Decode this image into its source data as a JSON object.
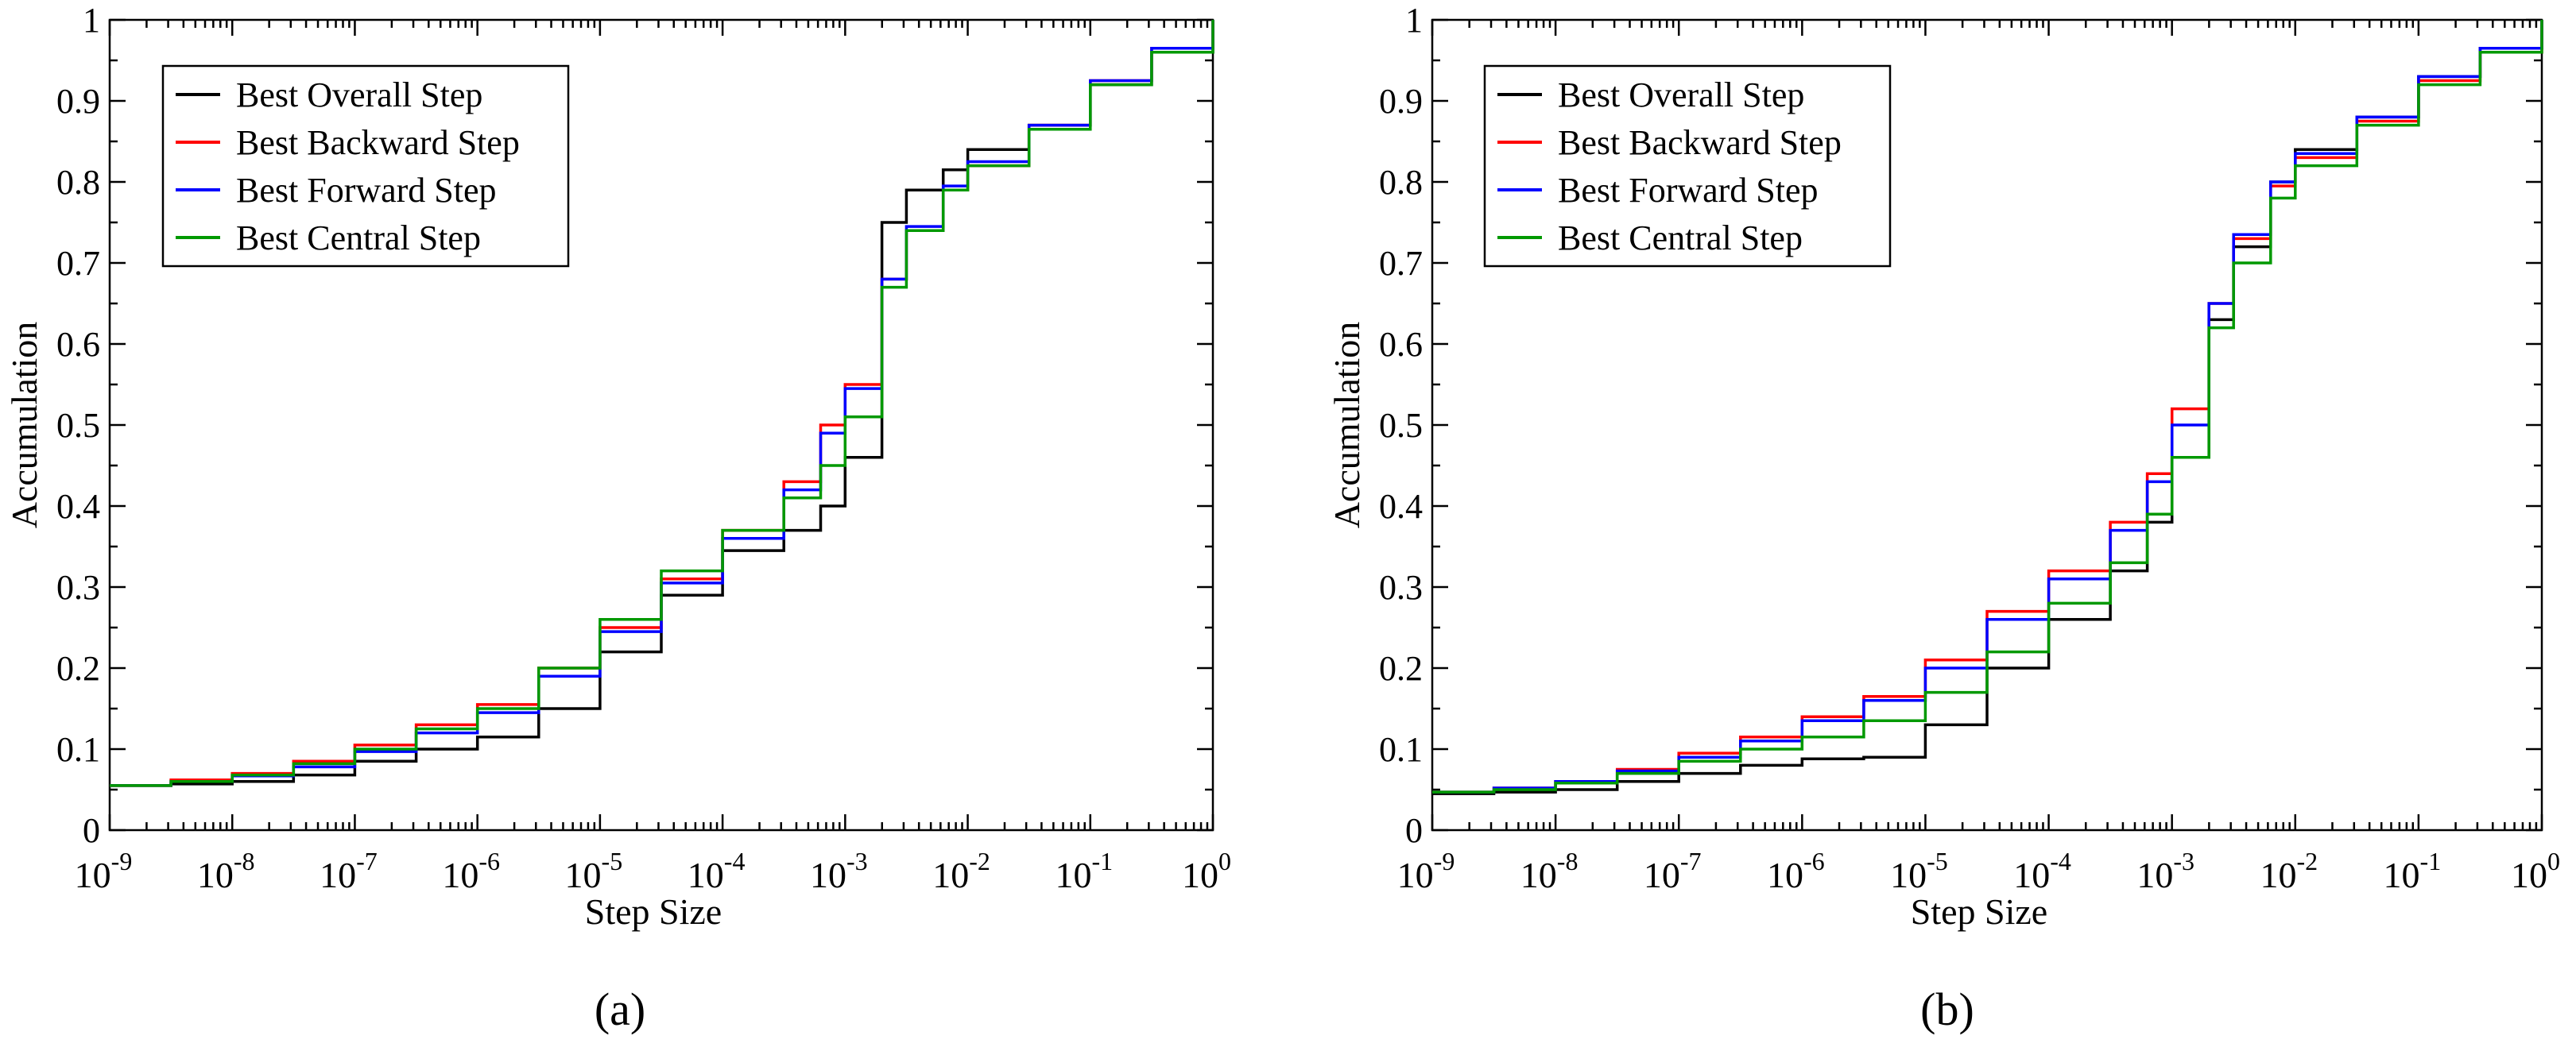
{
  "chart_data": [
    {
      "type": "line",
      "panel_label": "(a)",
      "xlabel": "Step Size",
      "ylabel": "Accumulation",
      "x_scale": "log10",
      "xlim_exp": [
        -9,
        0
      ],
      "ylim": [
        0,
        1
      ],
      "xtick_exps": [
        "-9",
        "-8",
        "-7",
        "-6",
        "-5",
        "-4",
        "-3",
        "-2",
        "-1",
        "0"
      ],
      "ytick_labels": [
        "0",
        "0.1",
        "0.2",
        "0.3",
        "0.4",
        "0.5",
        "0.6",
        "0.7",
        "0.8",
        "0.9",
        "1"
      ],
      "legend_position": "top-left",
      "series": [
        {
          "name": "Best Overall Step",
          "color": "#000000",
          "x_exp": [
            -9,
            -8.5,
            -8,
            -7.5,
            -7,
            -6.5,
            -6,
            -5.5,
            -5,
            -4.5,
            -4,
            -3.5,
            -3.2,
            -3,
            -2.7,
            -2.5,
            -2.2,
            -2,
            -1.5,
            -1,
            -0.5,
            0
          ],
          "values": [
            0.055,
            0.057,
            0.06,
            0.068,
            0.085,
            0.1,
            0.115,
            0.15,
            0.22,
            0.29,
            0.345,
            0.37,
            0.4,
            0.46,
            0.75,
            0.79,
            0.815,
            0.84,
            0.87,
            0.92,
            0.96,
            1.0
          ]
        },
        {
          "name": "Best Backward Step",
          "color": "#ff0000",
          "x_exp": [
            -9,
            -8.5,
            -8,
            -7.5,
            -7,
            -6.5,
            -6,
            -5.5,
            -5,
            -4.5,
            -4,
            -3.5,
            -3.2,
            -3,
            -2.7,
            -2.5,
            -2.2,
            -2,
            -1.5,
            -1,
            -0.5,
            0
          ],
          "values": [
            0.055,
            0.062,
            0.07,
            0.085,
            0.105,
            0.13,
            0.155,
            0.2,
            0.25,
            0.31,
            0.37,
            0.43,
            0.5,
            0.55,
            0.68,
            0.74,
            0.79,
            0.82,
            0.87,
            0.925,
            0.965,
            1.0
          ]
        },
        {
          "name": "Best Forward Step",
          "color": "#0000ff",
          "x_exp": [
            -9,
            -8.5,
            -8,
            -7.5,
            -7,
            -6.5,
            -6,
            -5.5,
            -5,
            -4.5,
            -4,
            -3.5,
            -3.2,
            -3,
            -2.7,
            -2.5,
            -2.2,
            -2,
            -1.5,
            -1,
            -0.5,
            0
          ],
          "values": [
            0.055,
            0.06,
            0.067,
            0.078,
            0.097,
            0.12,
            0.145,
            0.19,
            0.245,
            0.305,
            0.36,
            0.42,
            0.49,
            0.545,
            0.68,
            0.745,
            0.795,
            0.825,
            0.87,
            0.925,
            0.965,
            1.0
          ]
        },
        {
          "name": "Best Central Step",
          "color": "#009900",
          "x_exp": [
            -9,
            -8.5,
            -8,
            -7.5,
            -7,
            -6.5,
            -6,
            -5.5,
            -5,
            -4.5,
            -4,
            -3.5,
            -3.2,
            -3,
            -2.7,
            -2.5,
            -2.2,
            -2,
            -1.5,
            -1,
            -0.5,
            0
          ],
          "values": [
            0.055,
            0.06,
            0.068,
            0.082,
            0.1,
            0.125,
            0.15,
            0.2,
            0.26,
            0.32,
            0.37,
            0.41,
            0.45,
            0.51,
            0.67,
            0.74,
            0.79,
            0.82,
            0.865,
            0.92,
            0.96,
            1.0
          ]
        }
      ]
    },
    {
      "type": "line",
      "panel_label": "(b)",
      "xlabel": "Step Size",
      "ylabel": "Accumulation",
      "x_scale": "log10",
      "xlim_exp": [
        -9,
        0
      ],
      "ylim": [
        0,
        1
      ],
      "xtick_exps": [
        "-9",
        "-8",
        "-7",
        "-6",
        "-5",
        "-4",
        "-3",
        "-2",
        "-1",
        "0"
      ],
      "ytick_labels": [
        "0",
        "0.1",
        "0.2",
        "0.3",
        "0.4",
        "0.5",
        "0.6",
        "0.7",
        "0.8",
        "0.9",
        "1"
      ],
      "legend_position": "top-left",
      "series": [
        {
          "name": "Best Overall Step",
          "color": "#000000",
          "x_exp": [
            -9,
            -8.5,
            -8,
            -7.5,
            -7,
            -6.5,
            -6,
            -5.5,
            -5,
            -4.5,
            -4,
            -3.5,
            -3.2,
            -3,
            -2.7,
            -2.5,
            -2.2,
            -2,
            -1.5,
            -1,
            -0.5,
            0
          ],
          "values": [
            0.045,
            0.047,
            0.05,
            0.06,
            0.07,
            0.08,
            0.088,
            0.09,
            0.13,
            0.2,
            0.26,
            0.32,
            0.38,
            0.46,
            0.63,
            0.72,
            0.8,
            0.84,
            0.88,
            0.93,
            0.965,
            1.0
          ]
        },
        {
          "name": "Best Backward Step",
          "color": "#ff0000",
          "x_exp": [
            -9,
            -8.5,
            -8,
            -7.5,
            -7,
            -6.5,
            -6,
            -5.5,
            -5,
            -4.5,
            -4,
            -3.5,
            -3.2,
            -3,
            -2.7,
            -2.5,
            -2.2,
            -2,
            -1.5,
            -1,
            -0.5,
            0
          ],
          "values": [
            0.047,
            0.052,
            0.06,
            0.075,
            0.095,
            0.115,
            0.14,
            0.165,
            0.21,
            0.27,
            0.32,
            0.38,
            0.44,
            0.52,
            0.65,
            0.73,
            0.795,
            0.83,
            0.875,
            0.925,
            0.96,
            1.0
          ]
        },
        {
          "name": "Best Forward Step",
          "color": "#0000ff",
          "x_exp": [
            -9,
            -8.5,
            -8,
            -7.5,
            -7,
            -6.5,
            -6,
            -5.5,
            -5,
            -4.5,
            -4,
            -3.5,
            -3.2,
            -3,
            -2.7,
            -2.5,
            -2.2,
            -2,
            -1.5,
            -1,
            -0.5,
            0
          ],
          "values": [
            0.047,
            0.052,
            0.06,
            0.073,
            0.09,
            0.11,
            0.135,
            0.16,
            0.2,
            0.26,
            0.31,
            0.37,
            0.43,
            0.5,
            0.65,
            0.735,
            0.8,
            0.835,
            0.88,
            0.93,
            0.965,
            1.0
          ]
        },
        {
          "name": "Best Central Step",
          "color": "#009900",
          "x_exp": [
            -9,
            -8.5,
            -8,
            -7.5,
            -7,
            -6.5,
            -6,
            -5.5,
            -5,
            -4.5,
            -4,
            -3.5,
            -3.2,
            -3,
            -2.7,
            -2.5,
            -2.2,
            -2,
            -1.5,
            -1,
            -0.5,
            0
          ],
          "values": [
            0.047,
            0.05,
            0.058,
            0.07,
            0.085,
            0.1,
            0.115,
            0.135,
            0.17,
            0.22,
            0.28,
            0.33,
            0.39,
            0.46,
            0.62,
            0.7,
            0.78,
            0.82,
            0.87,
            0.92,
            0.96,
            1.0
          ]
        }
      ]
    }
  ]
}
